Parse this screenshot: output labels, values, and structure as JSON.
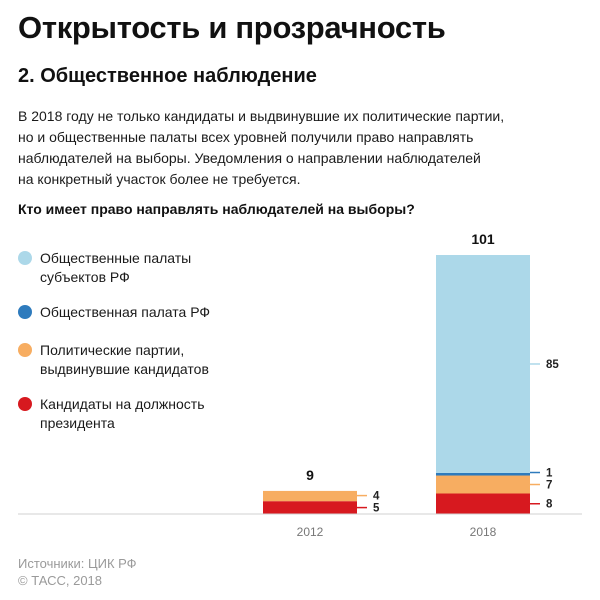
{
  "header": {
    "title": "Открытость и прозрачность",
    "subtitle": "2. Общественное наблюдение",
    "intro_lines": [
      "В 2018 году не только кандидаты и выдвинувшие их политические партии,",
      "но и общественные палаты всех уровней получили право направлять",
      "наблюдателей на выборы. Уведомления о направлении наблюдателей",
      "на конкретный участок более не требуется."
    ],
    "question": "Кто имеет право направлять наблюдателей на выборы?"
  },
  "legend": [
    {
      "lines": [
        "Общественные палаты",
        "субъектов РФ"
      ],
      "color": "#acd8e9"
    },
    {
      "lines": [
        "Общественная палата РФ"
      ],
      "color": "#2e7bbd"
    },
    {
      "lines": [
        "Политические партии,",
        "выдвинувшие кандидатов"
      ],
      "color": "#f7ad61"
    },
    {
      "lines": [
        "Кандидаты на должность",
        "президента"
      ],
      "color": "#d7191f"
    }
  ],
  "chart_data": {
    "type": "bar",
    "stacked": true,
    "categories": [
      "2012",
      "2018"
    ],
    "totals": [
      "9",
      "101"
    ],
    "series": [
      {
        "name": "Кандидаты на должность президента",
        "color": "#d7191f",
        "values": [
          5,
          8
        ]
      },
      {
        "name": "Политические партии, выдвинувшие кандидатов",
        "color": "#f7ad61",
        "values": [
          4,
          7
        ]
      },
      {
        "name": "Общественная палата РФ",
        "color": "#2e7bbd",
        "values": [
          0,
          1
        ]
      },
      {
        "name": "Общественные палаты субъектов РФ",
        "color": "#acd8e9",
        "values": [
          0,
          85
        ]
      }
    ],
    "ylim": [
      0,
      101
    ],
    "grid": false,
    "legend_position": "left"
  },
  "footer": {
    "source": "Источники: ЦИК РФ",
    "copyright": "© ТАСС, 2018"
  }
}
